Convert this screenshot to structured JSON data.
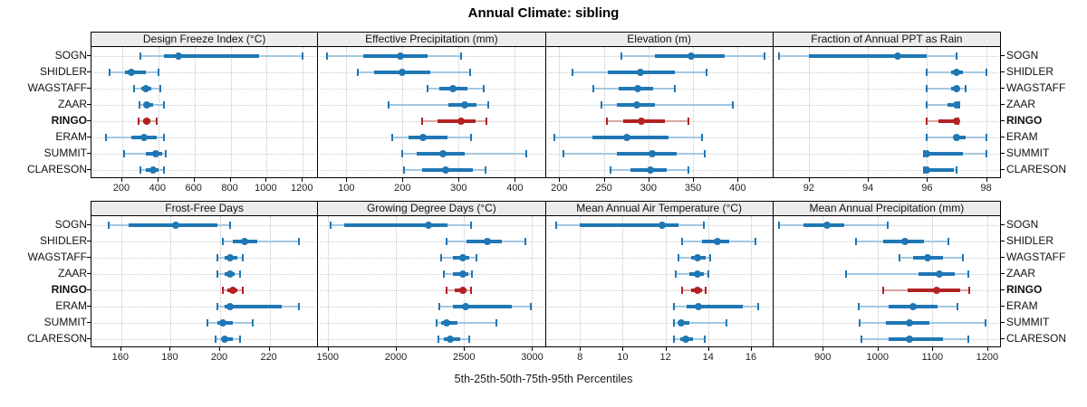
{
  "title": "Annual Climate: sibling",
  "footer": "5th-25th-50th-75th-95th Percentiles",
  "sites": [
    "SOGN",
    "SHIDLER",
    "WAGSTAFF",
    "ZAAR",
    "RINGO",
    "ERAM",
    "SUMMIT",
    "CLARESON"
  ],
  "highlight_site": "RINGO",
  "colors": {
    "blue": "#1f77b4",
    "blue_light": "#a3c8e2",
    "red": "#b22222",
    "red_light": "#d9a6a2",
    "strip_bg": "#ececec",
    "grid": "#c9c9c9",
    "border": "#000000"
  },
  "chart_data": [
    {
      "type": "dot-whisker",
      "title": "Design Freeze Index (°C)",
      "row": 0,
      "col": 0,
      "xlim": [
        30,
        1290
      ],
      "ticks": [
        200,
        400,
        600,
        800,
        1000,
        1200
      ],
      "percentile_labels": [
        "5th",
        "25th",
        "50th",
        "75th",
        "95th"
      ],
      "series": [
        {
          "name": "SOGN",
          "percentiles": [
            300,
            430,
            510,
            960,
            1200
          ]
        },
        {
          "name": "SHIDLER",
          "percentiles": [
            130,
            215,
            250,
            330,
            400
          ]
        },
        {
          "name": "WAGSTAFF",
          "percentiles": [
            265,
            305,
            330,
            360,
            410
          ]
        },
        {
          "name": "ZAAR",
          "percentiles": [
            295,
            320,
            335,
            370,
            430
          ]
        },
        {
          "name": "RINGO",
          "percentiles": [
            290,
            318,
            335,
            355,
            390
          ]
        },
        {
          "name": "ERAM",
          "percentiles": [
            110,
            250,
            320,
            390,
            430
          ]
        },
        {
          "name": "SUMMIT",
          "percentiles": [
            210,
            330,
            385,
            420,
            440
          ]
        },
        {
          "name": "CLARESON",
          "percentiles": [
            300,
            330,
            370,
            400,
            430
          ]
        }
      ]
    },
    {
      "type": "dot-whisker",
      "title": "Effective Precipitation (mm)",
      "row": 0,
      "col": 1,
      "xlim": [
        50,
        455
      ],
      "ticks": [
        100,
        200,
        300,
        400
      ],
      "series": [
        {
          "name": "SOGN",
          "percentiles": [
            65,
            130,
            197,
            245,
            305
          ]
        },
        {
          "name": "SHIDLER",
          "percentiles": [
            120,
            150,
            200,
            250,
            320
          ]
        },
        {
          "name": "WAGSTAFF",
          "percentiles": [
            245,
            265,
            290,
            315,
            345
          ]
        },
        {
          "name": "ZAAR",
          "percentiles": [
            176,
            281,
            310,
            331,
            352
          ]
        },
        {
          "name": "RINGO",
          "percentiles": [
            235,
            262,
            305,
            330,
            350
          ]
        },
        {
          "name": "ERAM",
          "percentiles": [
            182,
            210,
            237,
            280,
            322
          ]
        },
        {
          "name": "SUMMIT",
          "percentiles": [
            200,
            225,
            272,
            310,
            420
          ]
        },
        {
          "name": "CLARESON",
          "percentiles": [
            203,
            235,
            277,
            325,
            348
          ]
        }
      ]
    },
    {
      "type": "dot-whisker",
      "title": "Elevation (m)",
      "row": 0,
      "col": 2,
      "xlim": [
        185,
        440
      ],
      "ticks": [
        200,
        250,
        300,
        350,
        400
      ],
      "series": [
        {
          "name": "SOGN",
          "percentiles": [
            270,
            307,
            348,
            385,
            430
          ]
        },
        {
          "name": "SHIDLER",
          "percentiles": [
            215,
            255,
            291,
            330,
            365
          ]
        },
        {
          "name": "WAGSTAFF",
          "percentiles": [
            238,
            267,
            288,
            305,
            330
          ]
        },
        {
          "name": "ZAAR",
          "percentiles": [
            247,
            265,
            287,
            307,
            395
          ]
        },
        {
          "name": "RINGO",
          "percentiles": [
            253,
            272,
            292,
            318,
            345
          ]
        },
        {
          "name": "ERAM",
          "percentiles": [
            195,
            237,
            276,
            323,
            360
          ]
        },
        {
          "name": "SUMMIT",
          "percentiles": [
            205,
            265,
            304,
            332,
            363
          ]
        },
        {
          "name": "CLARESON",
          "percentiles": [
            258,
            280,
            302,
            320,
            345
          ]
        }
      ]
    },
    {
      "type": "dot-whisker",
      "title": "Fraction of Annual PPT as Rain",
      "row": 0,
      "col": 3,
      "xlim": [
        90.8,
        98.5
      ],
      "ticks": [
        92,
        94,
        96,
        98
      ],
      "series": [
        {
          "name": "SOGN",
          "percentiles": [
            91,
            92,
            95,
            96,
            97
          ]
        },
        {
          "name": "SHIDLER",
          "percentiles": [
            96,
            96.8,
            97,
            97.2,
            98
          ]
        },
        {
          "name": "WAGSTAFF",
          "percentiles": [
            96,
            96.8,
            97,
            97.1,
            97.3
          ]
        },
        {
          "name": "ZAAR",
          "percentiles": [
            96,
            96.7,
            97,
            97,
            97.1
          ]
        },
        {
          "name": "RINGO",
          "percentiles": [
            96,
            96.4,
            97,
            97,
            97.05
          ]
        },
        {
          "name": "ERAM",
          "percentiles": [
            96,
            96.9,
            97,
            97.3,
            98
          ]
        },
        {
          "name": "SUMMIT",
          "percentiles": [
            95.9,
            96,
            96,
            97.2,
            98
          ]
        },
        {
          "name": "CLARESON",
          "percentiles": [
            95.9,
            96,
            96,
            96.9,
            97
          ]
        }
      ]
    },
    {
      "type": "dot-whisker",
      "title": "Frost-Free Days",
      "row": 1,
      "col": 0,
      "xlim": [
        148,
        240
      ],
      "ticks": [
        160,
        180,
        200,
        220
      ],
      "series": [
        {
          "name": "SOGN",
          "percentiles": [
            155,
            163,
            182,
            199,
            204
          ]
        },
        {
          "name": "SHIDLER",
          "percentiles": [
            201,
            205,
            210,
            215,
            232
          ]
        },
        {
          "name": "WAGSTAFF",
          "percentiles": [
            199,
            202,
            204,
            207,
            209
          ]
        },
        {
          "name": "ZAAR",
          "percentiles": [
            199,
            202,
            204,
            206,
            208
          ]
        },
        {
          "name": "RINGO",
          "percentiles": [
            201,
            203,
            205,
            207,
            209
          ]
        },
        {
          "name": "ERAM",
          "percentiles": [
            199,
            202,
            204,
            225,
            232
          ]
        },
        {
          "name": "SUMMIT",
          "percentiles": [
            195,
            199,
            201,
            205,
            213
          ]
        },
        {
          "name": "CLARESON",
          "percentiles": [
            198,
            201,
            202,
            205,
            208
          ]
        }
      ]
    },
    {
      "type": "dot-whisker",
      "title": "Growing Degree Days (°C)",
      "row": 1,
      "col": 1,
      "xlim": [
        1430,
        3100
      ],
      "ticks": [
        1500,
        2000,
        2500,
        3000
      ],
      "series": [
        {
          "name": "SOGN",
          "percentiles": [
            1520,
            1620,
            2240,
            2380,
            2550
          ]
        },
        {
          "name": "SHIDLER",
          "percentiles": [
            2370,
            2520,
            2670,
            2780,
            2950
          ]
        },
        {
          "name": "WAGSTAFF",
          "percentiles": [
            2330,
            2420,
            2490,
            2540,
            2590
          ]
        },
        {
          "name": "ZAAR",
          "percentiles": [
            2350,
            2420,
            2490,
            2530,
            2560
          ]
        },
        {
          "name": "RINGO",
          "percentiles": [
            2370,
            2430,
            2490,
            2520,
            2550
          ]
        },
        {
          "name": "ERAM",
          "percentiles": [
            2320,
            2420,
            2510,
            2850,
            2990
          ]
        },
        {
          "name": "SUMMIT",
          "percentiles": [
            2300,
            2330,
            2370,
            2450,
            2740
          ]
        },
        {
          "name": "CLARESON",
          "percentiles": [
            2310,
            2350,
            2400,
            2470,
            2540
          ]
        }
      ]
    },
    {
      "type": "dot-whisker",
      "title": "Mean Annual Air Temperature (°C)",
      "row": 1,
      "col": 2,
      "xlim": [
        6.4,
        17.05
      ],
      "ticks": [
        8,
        10,
        12,
        14,
        16
      ],
      "series": [
        {
          "name": "SOGN",
          "percentiles": [
            6.9,
            8.0,
            11.85,
            12.6,
            13.8
          ]
        },
        {
          "name": "SHIDLER",
          "percentiles": [
            12.8,
            13.7,
            14.45,
            15.0,
            16.2
          ]
        },
        {
          "name": "WAGSTAFF",
          "percentiles": [
            12.6,
            13.2,
            13.5,
            13.9,
            14.1
          ]
        },
        {
          "name": "ZAAR",
          "percentiles": [
            12.5,
            13.1,
            13.5,
            13.8,
            14.0
          ]
        },
        {
          "name": "RINGO",
          "percentiles": [
            12.8,
            13.2,
            13.5,
            13.7,
            13.9
          ]
        },
        {
          "name": "ERAM",
          "percentiles": [
            12.4,
            13.0,
            13.55,
            15.6,
            16.35
          ]
        },
        {
          "name": "SUMMIT",
          "percentiles": [
            12.4,
            12.6,
            12.75,
            13.1,
            14.85
          ]
        },
        {
          "name": "CLARESON",
          "percentiles": [
            12.4,
            12.7,
            12.95,
            13.3,
            13.85
          ]
        }
      ]
    },
    {
      "type": "dot-whisker",
      "title": "Mean Annual Precipitation (mm)",
      "row": 1,
      "col": 3,
      "xlim": [
        810,
        1225
      ],
      "ticks": [
        900,
        1000,
        1100,
        1200
      ],
      "series": [
        {
          "name": "SOGN",
          "percentiles": [
            820,
            865,
            908,
            940,
            1018
          ]
        },
        {
          "name": "SHIDLER",
          "percentiles": [
            960,
            1010,
            1050,
            1085,
            1130
          ]
        },
        {
          "name": "WAGSTAFF",
          "percentiles": [
            1040,
            1065,
            1092,
            1120,
            1155
          ]
        },
        {
          "name": "ZAAR",
          "percentiles": [
            942,
            1075,
            1113,
            1140,
            1165
          ]
        },
        {
          "name": "RINGO",
          "percentiles": [
            1010,
            1055,
            1108,
            1150,
            1168
          ]
        },
        {
          "name": "ERAM",
          "percentiles": [
            965,
            1020,
            1065,
            1110,
            1145
          ]
        },
        {
          "name": "SUMMIT",
          "percentiles": [
            968,
            1015,
            1058,
            1095,
            1197
          ]
        },
        {
          "name": "CLARESON",
          "percentiles": [
            970,
            1020,
            1058,
            1120,
            1165
          ]
        }
      ]
    }
  ]
}
